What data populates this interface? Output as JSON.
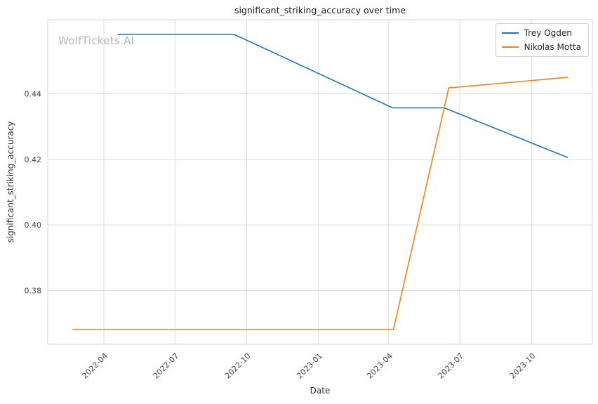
{
  "figure": {
    "watermark": "WolfTickets.AI"
  },
  "chart_data": {
    "type": "line",
    "title": "significant_striking_accuracy over time",
    "xlabel": "Date",
    "ylabel": "significant_striking_accuracy",
    "grid": true,
    "legend_position": "upper right",
    "background": "#ffffff",
    "gridline_color": "#dcdcdc",
    "xlim": [
      "2022-01-19",
      "2023-12-18"
    ],
    "ylim": [
      0.3636,
      0.4626
    ],
    "x_ticks": [
      {
        "value": "2022-04-01",
        "label": "2022-04"
      },
      {
        "value": "2022-07-01",
        "label": "2022-07"
      },
      {
        "value": "2022-10-01",
        "label": "2022-10"
      },
      {
        "value": "2023-01-01",
        "label": "2023-01"
      },
      {
        "value": "2023-04-01",
        "label": "2023-04"
      },
      {
        "value": "2023-07-01",
        "label": "2023-07"
      },
      {
        "value": "2023-10-01",
        "label": "2023-10"
      }
    ],
    "y_ticks": [
      {
        "value": 0.38,
        "label": "0.38"
      },
      {
        "value": 0.4,
        "label": "0.40"
      },
      {
        "value": 0.42,
        "label": "0.42"
      },
      {
        "value": 0.44,
        "label": "0.44"
      }
    ],
    "series": [
      {
        "name": "Trey Ogden",
        "color": "#1f77b4",
        "points": [
          {
            "x": "2022-04-19",
            "y": 0.4581
          },
          {
            "x": "2022-09-15",
            "y": 0.4581
          },
          {
            "x": "2023-04-06",
            "y": 0.4357
          },
          {
            "x": "2023-06-11",
            "y": 0.4357
          },
          {
            "x": "2023-11-16",
            "y": 0.4206
          }
        ]
      },
      {
        "name": "Nikolas Motta",
        "color": "#ff7f0e",
        "points": [
          {
            "x": "2022-02-20",
            "y": 0.3681
          },
          {
            "x": "2023-04-07",
            "y": 0.3681
          },
          {
            "x": "2023-06-17",
            "y": 0.4418
          },
          {
            "x": "2023-11-16",
            "y": 0.445
          }
        ]
      }
    ]
  }
}
